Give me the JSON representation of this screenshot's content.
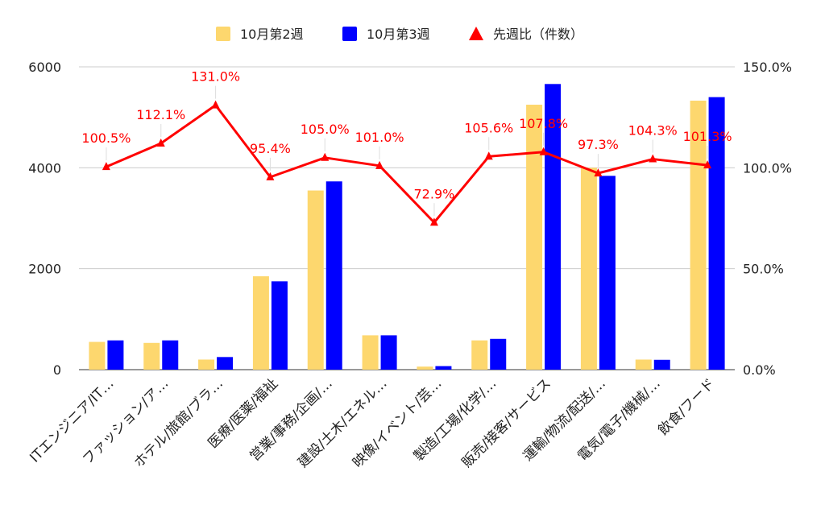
{
  "colors": {
    "series_week2": "#fdd76e",
    "series_week3": "#0000ff",
    "ratio_line": "#ff0000",
    "grid": "#cccccc",
    "axis_text": "#222222"
  },
  "chart_data": {
    "type": "bar",
    "title": "",
    "xlabel": "",
    "ylabel": "",
    "ylabel_right": "",
    "categories": [
      "ITエンジニア/IT…",
      "ファッション/ア…",
      "ホテル/旅館/ブラ…",
      "医療/医薬/福祉",
      "営業/事務/企画/…",
      "建設/土木/エネル…",
      "映像/イベント/芸…",
      "製造/工場/化学/…",
      "販売/接客/サービス",
      "運輸/物流/配送/…",
      "電気/電子/機械/…",
      "飲食/フード"
    ],
    "series": [
      {
        "name": "10月第2週",
        "type": "bar",
        "axis": "left",
        "values": [
          550,
          530,
          200,
          1850,
          3550,
          680,
          60,
          580,
          5250,
          4000,
          200,
          5330
        ]
      },
      {
        "name": "10月第3週",
        "type": "bar",
        "axis": "left",
        "values": [
          580,
          580,
          250,
          1750,
          3730,
          680,
          70,
          610,
          5660,
          3840,
          195,
          5400
        ]
      },
      {
        "name": "先週比（件数）",
        "type": "line",
        "axis": "right",
        "values": [
          100.5,
          112.1,
          131.0,
          95.4,
          105.0,
          101.0,
          72.9,
          105.6,
          107.8,
          97.3,
          104.3,
          101.3
        ],
        "labels": [
          "100.5%",
          "112.1%",
          "131.0%",
          "95.4%",
          "105.0%",
          "101.0%",
          "72.9%",
          "105.6%",
          "107.8%",
          "97.3%",
          "104.3%",
          "101.3%"
        ]
      }
    ],
    "ylim": [
      0,
      6000
    ],
    "yticks": [
      0,
      2000,
      4000,
      6000
    ],
    "ylim_right": [
      0,
      150
    ],
    "yticks_right": [
      "0.0%",
      "50.0%",
      "100.0%",
      "150.0%"
    ],
    "legend_position": "top-center",
    "grid": true
  }
}
